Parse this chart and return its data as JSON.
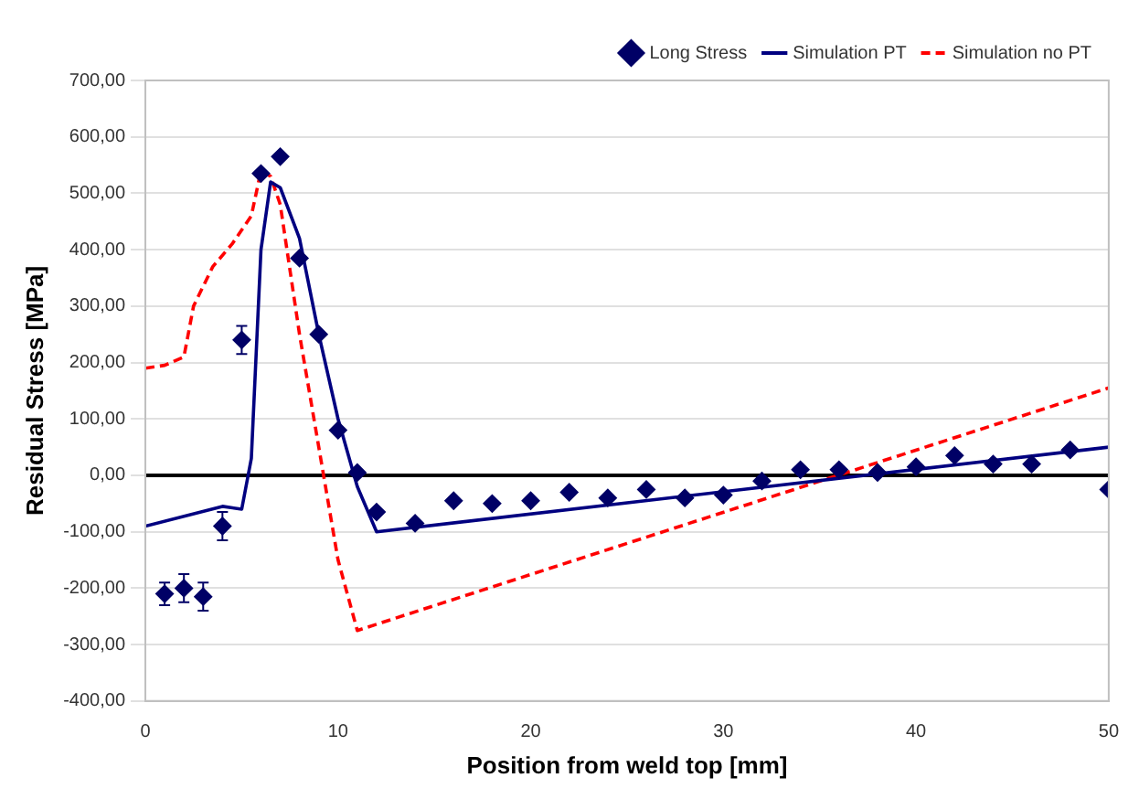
{
  "chart_data": {
    "type": "scatter",
    "xlabel": "Position from weld top [mm]",
    "ylabel": "Residual Stress [MPa]",
    "xlim": [
      0,
      50
    ],
    "xticks": [
      0,
      10,
      20,
      30,
      40,
      50
    ],
    "ylim": [
      -400,
      700
    ],
    "yticks": [
      {
        "value": -400,
        "label": "-400,00"
      },
      {
        "value": -300,
        "label": "-300,00"
      },
      {
        "value": -200,
        "label": "-200,00"
      },
      {
        "value": -100,
        "label": "-100,00"
      },
      {
        "value": 0,
        "label": "0,00"
      },
      {
        "value": 100,
        "label": "100,00"
      },
      {
        "value": 200,
        "label": "200,00"
      },
      {
        "value": 300,
        "label": "300,00"
      },
      {
        "value": 400,
        "label": "400,00"
      },
      {
        "value": 500,
        "label": "500,00"
      },
      {
        "value": 600,
        "label": "600,00"
      },
      {
        "value": 700,
        "label": "700,00"
      }
    ],
    "grid": "y",
    "legend": "top right",
    "ref_lines": [
      {
        "axis": "y",
        "value": 0,
        "color": "#000000"
      }
    ],
    "series": [
      {
        "name": "Long Stress",
        "type": "scatter",
        "marker": "diamond",
        "color": "#000066",
        "x": [
          1,
          2,
          3,
          4,
          5,
          6,
          7,
          8,
          9,
          10,
          11,
          12,
          14,
          16,
          18,
          20,
          22,
          24,
          26,
          28,
          30,
          32,
          34,
          36,
          38,
          40,
          42,
          44,
          46,
          48,
          50
        ],
        "values": [
          -210,
          -200,
          -215,
          -90,
          240,
          535,
          565,
          385,
          250,
          80,
          5,
          -65,
          -85,
          -45,
          -50,
          -45,
          -30,
          -40,
          -25,
          -40,
          -35,
          -10,
          10,
          10,
          5,
          15,
          35,
          20,
          20,
          45,
          -25
        ],
        "errors": [
          20,
          25,
          25,
          25,
          25,
          null,
          null,
          null,
          null,
          null,
          null,
          null,
          null,
          null,
          null,
          null,
          null,
          null,
          null,
          null,
          null,
          null,
          null,
          null,
          null,
          null,
          null,
          null,
          null,
          null,
          null
        ]
      },
      {
        "name": "Simulation PT",
        "type": "line",
        "line_style": "solid",
        "color": "#000080",
        "x": [
          0,
          4,
          5,
          5.5,
          6,
          6.5,
          7,
          8,
          9,
          10,
          11,
          12,
          50
        ],
        "values": [
          -90,
          -55,
          -60,
          30,
          400,
          520,
          510,
          420,
          250,
          100,
          -20,
          -100,
          50
        ]
      },
      {
        "name": "Simulation no PT",
        "type": "line",
        "line_style": "dashed",
        "color": "#ff0000",
        "x": [
          0,
          1,
          2,
          2.5,
          3.5,
          4.5,
          5.5,
          6,
          6.5,
          7,
          8,
          9,
          10,
          11,
          50
        ],
        "values": [
          190,
          195,
          210,
          300,
          370,
          410,
          460,
          540,
          530,
          480,
          250,
          50,
          -150,
          -275,
          155
        ]
      }
    ]
  }
}
